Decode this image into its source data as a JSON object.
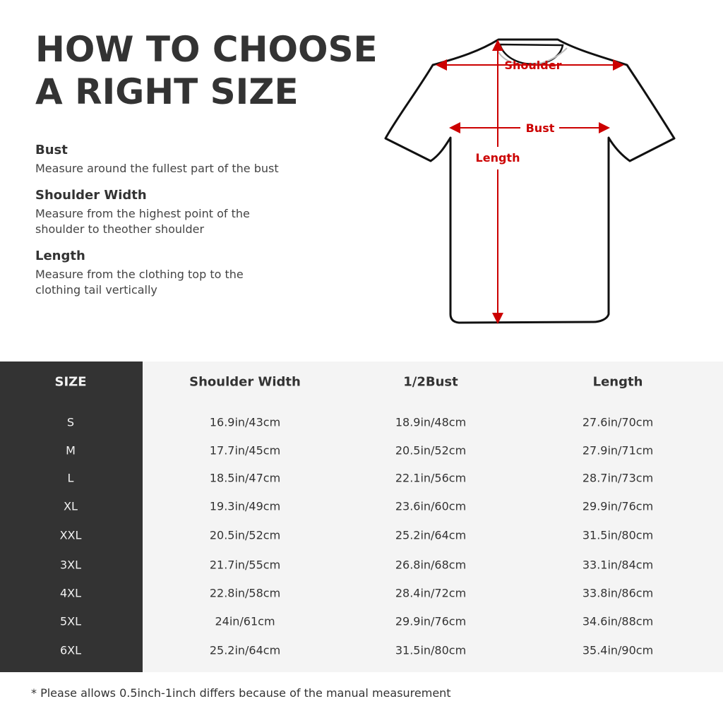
{
  "title": {
    "line1": "HOW TO CHOOSE",
    "line2": "A RIGHT SIZE"
  },
  "definitions": [
    {
      "term": "Bust",
      "text": "Measure around the fullest part of the bust"
    },
    {
      "term": "Shoulder Width",
      "text1": "Measure from the highest point of the",
      "text2": "shoulder to theother shoulder"
    },
    {
      "term": "Length",
      "text1": "Measure from the clothing top to the",
      "text2": "clothing tail vertically"
    }
  ],
  "diagram": {
    "shoulder": "Shoulder",
    "bust": "Bust",
    "length": "Length",
    "arrow_color": "#cc0000"
  },
  "table": {
    "headers": [
      "SIZE",
      "Shoulder Width",
      "1/2Bust",
      "Length"
    ],
    "rows": [
      [
        "S",
        "16.9in/43cm",
        "18.9in/48cm",
        "27.6in/70cm"
      ],
      [
        "M",
        "17.7in/45cm",
        "20.5in/52cm",
        "27.9in/71cm"
      ],
      [
        "L",
        "18.5in/47cm",
        "22.1in/56cm",
        "28.7in/73cm"
      ],
      [
        "XL",
        "19.3in/49cm",
        "23.6in/60cm",
        "29.9in/76cm"
      ],
      [
        "XXL",
        "20.5in/52cm",
        "25.2in/64cm",
        "31.5in/80cm"
      ],
      [
        "3XL",
        "21.7in/55cm",
        "26.8in/68cm",
        "33.1in/84cm"
      ],
      [
        "4XL",
        "22.8in/58cm",
        "28.4in/72cm",
        "33.8in/86cm"
      ],
      [
        "5XL",
        "24in/61cm",
        "29.9in/76cm",
        "34.6in/88cm"
      ],
      [
        "6XL",
        "25.2in/64cm",
        "31.5in/80cm",
        "35.4in/90cm"
      ]
    ]
  },
  "note": "* Please allows 0.5inch-1inch differs because of the  manual measurement"
}
